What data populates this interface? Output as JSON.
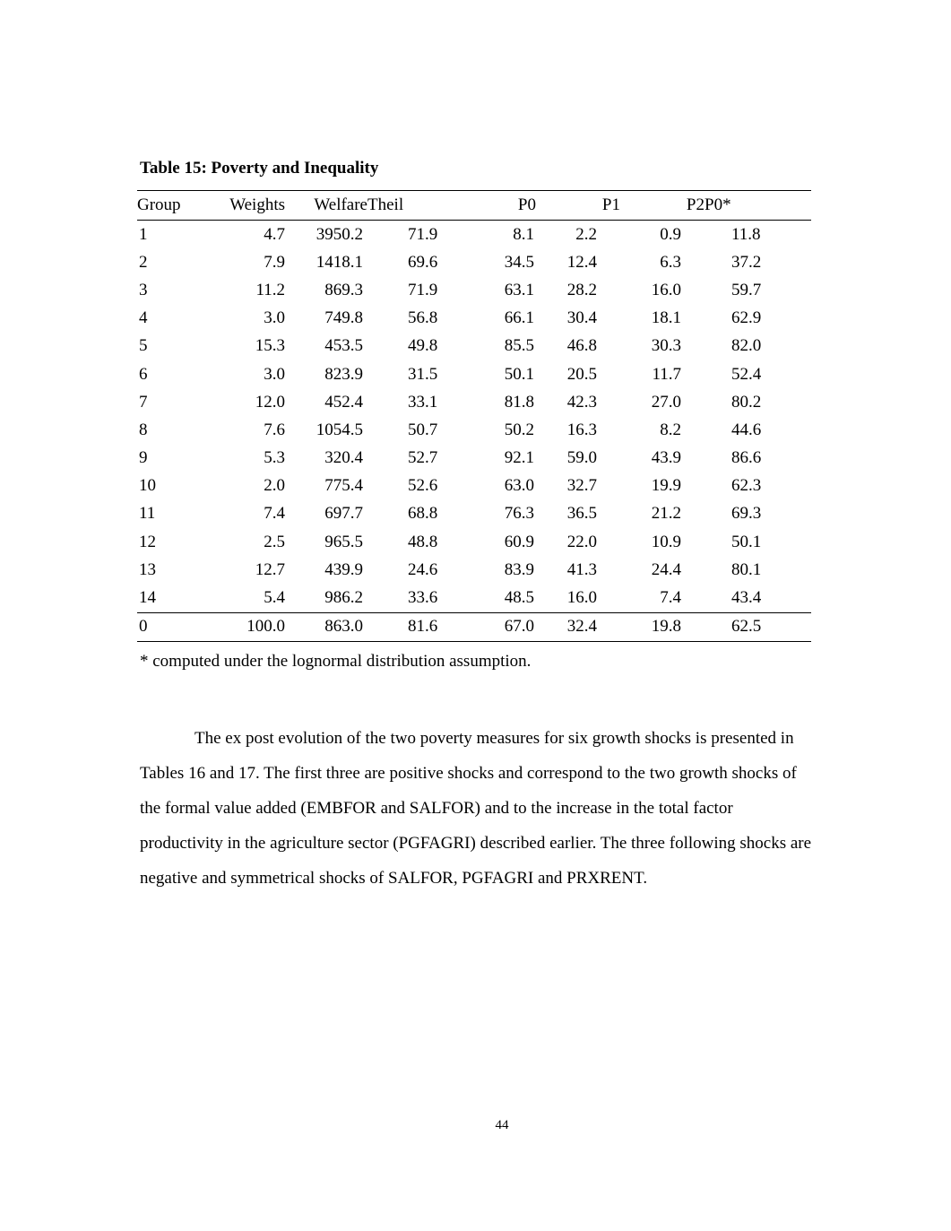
{
  "table": {
    "caption": "Table 15: Poverty and Inequality",
    "headers": [
      "Group",
      "Weights",
      "Welfare",
      "Theil",
      "P0",
      "P1",
      "P2",
      "P0*"
    ],
    "rows": [
      [
        "1",
        "4.7",
        "3950.2",
        "71.9",
        "8.1",
        "2.2",
        "0.9",
        "11.8"
      ],
      [
        "2",
        "7.9",
        "1418.1",
        "69.6",
        "34.5",
        "12.4",
        "6.3",
        "37.2"
      ],
      [
        "3",
        "11.2",
        "869.3",
        "71.9",
        "63.1",
        "28.2",
        "16.0",
        "59.7"
      ],
      [
        "4",
        "3.0",
        "749.8",
        "56.8",
        "66.1",
        "30.4",
        "18.1",
        "62.9"
      ],
      [
        "5",
        "15.3",
        "453.5",
        "49.8",
        "85.5",
        "46.8",
        "30.3",
        "82.0"
      ],
      [
        "6",
        "3.0",
        "823.9",
        "31.5",
        "50.1",
        "20.5",
        "11.7",
        "52.4"
      ],
      [
        "7",
        "12.0",
        "452.4",
        "33.1",
        "81.8",
        "42.3",
        "27.0",
        "80.2"
      ],
      [
        "8",
        "7.6",
        "1054.5",
        "50.7",
        "50.2",
        "16.3",
        "8.2",
        "44.6"
      ],
      [
        "9",
        "5.3",
        "320.4",
        "52.7",
        "92.1",
        "59.0",
        "43.9",
        "86.6"
      ],
      [
        "10",
        "2.0",
        "775.4",
        "52.6",
        "63.0",
        "32.7",
        "19.9",
        "62.3"
      ],
      [
        "11",
        "7.4",
        "697.7",
        "68.8",
        "76.3",
        "36.5",
        "21.2",
        "69.3"
      ],
      [
        "12",
        "2.5",
        "965.5",
        "48.8",
        "60.9",
        "22.0",
        "10.9",
        "50.1"
      ],
      [
        "13",
        "12.7",
        "439.9",
        "24.6",
        "83.9",
        "41.3",
        "24.4",
        "80.1"
      ],
      [
        "14",
        "5.4",
        "986.2",
        "33.6",
        "48.5",
        "16.0",
        "7.4",
        "43.4"
      ]
    ],
    "total": [
      "0",
      "100.0",
      "863.0",
      "81.6",
      "67.0",
      "32.4",
      "19.8",
      "62.5"
    ],
    "footnote": "* computed under the lognormal distribution assumption."
  },
  "paragraph": "The ex post evolution of the two poverty measures for six growth shocks is presented in Tables 16 and 17. The first three are positive shocks and correspond to the two growth shocks of the formal value added (EMBFOR and SALFOR) and to the increase in the total factor productivity in the agriculture sector (PGFAGRI) described earlier. The three following shocks are negative and symmetrical shocks of SALFOR, PGFAGRI and PRXRENT.",
  "page_number": "44"
}
